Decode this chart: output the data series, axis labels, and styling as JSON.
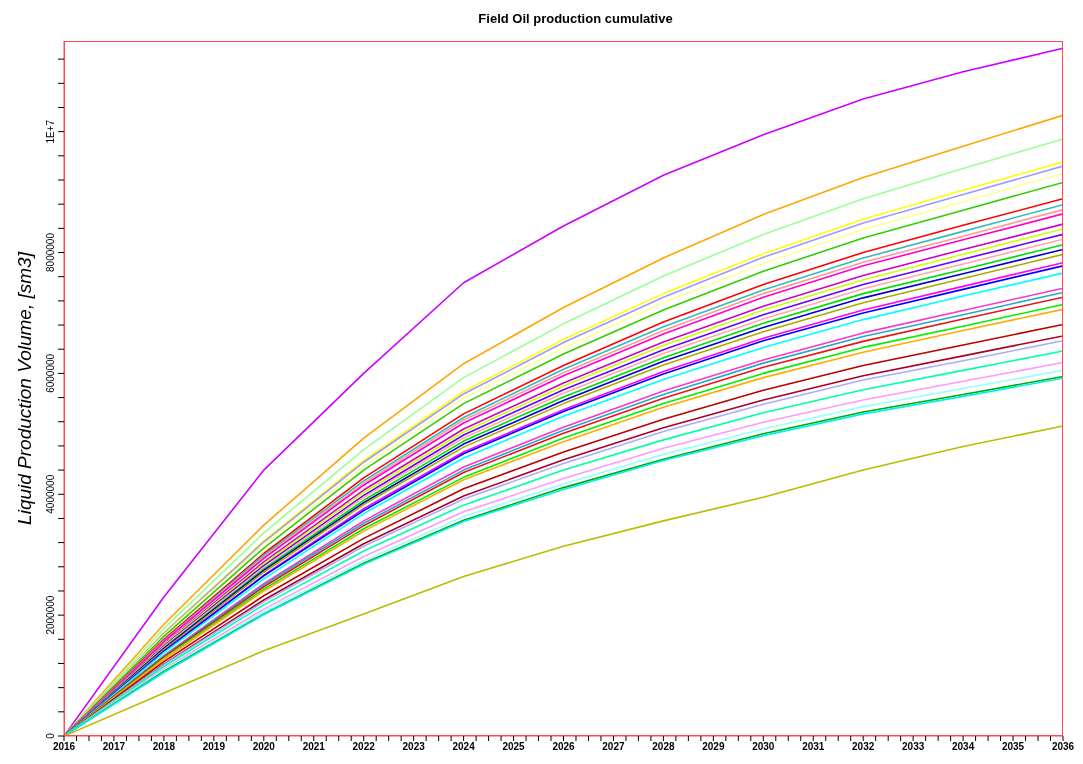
{
  "chart_data": {
    "type": "line",
    "title": "Field Oil production cumulative",
    "ylabel": "Liquid Production Volume, [sm3]",
    "x": [
      2016,
      2018,
      2020,
      2022,
      2024,
      2026,
      2028,
      2030,
      2032,
      2034,
      2036
    ],
    "xlim": [
      2016,
      2036
    ],
    "xticks": [
      2016,
      {
        "value": 2016.25,
        "label": null
      },
      {
        "value": 2016.5,
        "label": null
      },
      {
        "value": 2016.75,
        "label": null
      },
      2017,
      {
        "value": 2017.25,
        "label": null
      },
      {
        "value": 2017.5,
        "label": null
      },
      {
        "value": 2017.75,
        "label": null
      },
      2018,
      {
        "value": 2018.25,
        "label": null
      },
      {
        "value": 2018.5,
        "label": null
      },
      {
        "value": 2018.75,
        "label": null
      },
      2019,
      {
        "value": 2019.25,
        "label": null
      },
      {
        "value": 2019.5,
        "label": null
      },
      {
        "value": 2019.75,
        "label": null
      },
      2020,
      {
        "value": 2020.25,
        "label": null
      },
      {
        "value": 2020.5,
        "label": null
      },
      {
        "value": 2020.75,
        "label": null
      },
      2021,
      {
        "value": 2021.25,
        "label": null
      },
      {
        "value": 2021.5,
        "label": null
      },
      {
        "value": 2021.75,
        "label": null
      },
      2022,
      {
        "value": 2022.25,
        "label": null
      },
      {
        "value": 2022.5,
        "label": null
      },
      {
        "value": 2022.75,
        "label": null
      },
      2023,
      {
        "value": 2023.25,
        "label": null
      },
      {
        "value": 2023.5,
        "label": null
      },
      {
        "value": 2023.75,
        "label": null
      },
      2024,
      {
        "value": 2024.25,
        "label": null
      },
      {
        "value": 2024.5,
        "label": null
      },
      {
        "value": 2024.75,
        "label": null
      },
      2025,
      {
        "value": 2025.25,
        "label": null
      },
      {
        "value": 2025.5,
        "label": null
      },
      {
        "value": 2025.75,
        "label": null
      },
      2026,
      {
        "value": 2026.25,
        "label": null
      },
      {
        "value": 2026.5,
        "label": null
      },
      {
        "value": 2026.75,
        "label": null
      },
      2027,
      {
        "value": 2027.25,
        "label": null
      },
      {
        "value": 2027.5,
        "label": null
      },
      {
        "value": 2027.75,
        "label": null
      },
      2028,
      {
        "value": 2028.25,
        "label": null
      },
      {
        "value": 2028.5,
        "label": null
      },
      {
        "value": 2028.75,
        "label": null
      },
      2029,
      {
        "value": 2029.25,
        "label": null
      },
      {
        "value": 2029.5,
        "label": null
      },
      {
        "value": 2029.75,
        "label": null
      },
      2030,
      {
        "value": 2030.25,
        "label": null
      },
      {
        "value": 2030.5,
        "label": null
      },
      {
        "value": 2030.75,
        "label": null
      },
      2031,
      {
        "value": 2031.25,
        "label": null
      },
      {
        "value": 2031.5,
        "label": null
      },
      {
        "value": 2031.75,
        "label": null
      },
      2032,
      {
        "value": 2032.25,
        "label": null
      },
      {
        "value": 2032.5,
        "label": null
      },
      {
        "value": 2032.75,
        "label": null
      },
      2033,
      {
        "value": 2033.25,
        "label": null
      },
      {
        "value": 2033.5,
        "label": null
      },
      {
        "value": 2033.75,
        "label": null
      },
      2034,
      {
        "value": 2034.25,
        "label": null
      },
      {
        "value": 2034.5,
        "label": null
      },
      {
        "value": 2034.75,
        "label": null
      },
      2035,
      {
        "value": 2035.25,
        "label": null
      },
      {
        "value": 2035.5,
        "label": null
      },
      {
        "value": 2035.75,
        "label": null
      },
      2036
    ],
    "ylim": [
      0,
      11500000
    ],
    "yticks": [
      0,
      {
        "value": 400000,
        "label": null
      },
      {
        "value": 800000,
        "label": null
      },
      {
        "value": 1200000,
        "label": null
      },
      {
        "value": 1600000,
        "label": null
      },
      2000000,
      {
        "value": 2400000,
        "label": null
      },
      {
        "value": 2800000,
        "label": null
      },
      {
        "value": 3200000,
        "label": null
      },
      {
        "value": 3600000,
        "label": null
      },
      4000000,
      {
        "value": 4400000,
        "label": null
      },
      {
        "value": 4800000,
        "label": null
      },
      {
        "value": 5200000,
        "label": null
      },
      {
        "value": 5600000,
        "label": null
      },
      6000000,
      {
        "value": 6400000,
        "label": null
      },
      {
        "value": 6800000,
        "label": null
      },
      {
        "value": 7200000,
        "label": null
      },
      {
        "value": 7600000,
        "label": null
      },
      8000000,
      {
        "value": 8400000,
        "label": null
      },
      {
        "value": 8800000,
        "label": null
      },
      {
        "value": 9200000,
        "label": null
      },
      {
        "value": 9600000,
        "label": null
      },
      {
        "value": 10000000,
        "label": "1E+7"
      },
      {
        "value": 10400000,
        "label": null
      },
      {
        "value": 10800000,
        "label": null
      },
      {
        "value": 11200000,
        "label": null
      }
    ],
    "grid": false,
    "legend": false,
    "marker": "none",
    "line_style": "solid",
    "series": [
      {
        "color": "#cc00ff",
        "values": [
          0,
          2300000.0,
          4400000.0,
          6000000.0,
          7500000.0,
          8440000.0,
          9280000.0,
          9950000.0,
          10540000.0,
          10990000.0,
          11380000.0
        ]
      },
      {
        "color": "#ffa500",
        "values": [
          0,
          1850000.0,
          3490000.0,
          4930000.0,
          6160000.0,
          7090000.0,
          7910000.0,
          8630000.0,
          9240000.0,
          9760000.0,
          10270000.0
        ]
      },
      {
        "color": "#99ff99",
        "values": [
          0,
          1780000.0,
          3360000.0,
          4740000.0,
          5930000.0,
          6820000.0,
          7610000.0,
          8300000.0,
          8890000.0,
          9390000.0,
          9880000.0
        ]
      },
      {
        "color": "#ffff00",
        "values": [
          0,
          1710000.0,
          3230000.0,
          4560000.0,
          5700000.0,
          6560000.0,
          7320000.0,
          7980000.0,
          8550000.0,
          9030000.0,
          9500000.0
        ]
      },
      {
        "color": "#9999ff",
        "values": [
          0,
          1700000.0,
          3210000.0,
          4530000.0,
          5660000.0,
          6510000.0,
          7260000.0,
          7920000.0,
          8490000.0,
          8960000.0,
          9430000.0
        ]
      },
      {
        "color": "#ffff99",
        "values": [
          0,
          1680000.0,
          3170000.0,
          4470000.0,
          5590000.0,
          6420000.0,
          7170000.0,
          7820000.0,
          8380000.0,
          8840000.0,
          9310000.0
        ]
      },
      {
        "color": "#33cc00",
        "values": [
          0,
          1650000.0,
          3110000.0,
          4400000.0,
          5500000.0,
          6320000.0,
          7050000.0,
          7690000.0,
          8240000.0,
          8700000.0,
          9160000.0
        ]
      },
      {
        "color": "#ff0000",
        "values": [
          0,
          1600000.0,
          3020000.0,
          4270000.0,
          5330000.0,
          6130000.0,
          6850000.0,
          7470000.0,
          8000000.0,
          8450000.0,
          8890000.0
        ]
      },
      {
        "color": "#33bbbb",
        "values": [
          0,
          1580000.0,
          2990000.0,
          4220000.0,
          5270000.0,
          6070000.0,
          6770000.0,
          7380000.0,
          7910000.0,
          8350000.0,
          8790000.0
        ]
      },
      {
        "color": "#ff9999",
        "values": [
          0,
          1570000.0,
          2960000.0,
          4180000.0,
          5230000.0,
          6010000.0,
          6710000.0,
          7320000.0,
          7840000.0,
          8270000.0,
          8710000.0
        ]
      },
      {
        "color": "#ff00cc",
        "values": [
          0,
          1560000.0,
          2940000.0,
          4150000.0,
          5180000.0,
          5960000.0,
          6650000.0,
          7260000.0,
          7780000.0,
          8210000.0,
          8640000.0
        ]
      },
      {
        "color": "#cc00cc",
        "values": [
          0,
          1520000.0,
          2880000.0,
          4070000.0,
          5080000.0,
          5840000.0,
          6520000.0,
          7110000.0,
          7620000.0,
          8050000.0,
          8470000.0
        ]
      },
      {
        "color": "#ccff00",
        "values": [
          0,
          1510000.0,
          2850000.0,
          4030000.0,
          5030000.0,
          5790000.0,
          6460000.0,
          7050000.0,
          7550000.0,
          7970000.0,
          8390000.0
        ]
      },
      {
        "color": "#6600ff",
        "values": [
          0,
          1490000.0,
          2820000.0,
          3980000.0,
          4980000.0,
          5730000.0,
          6390000.0,
          6970000.0,
          7470000.0,
          7890000.0,
          8300000.0
        ]
      },
      {
        "color": "#ffaaaa",
        "values": [
          0,
          1480000.0,
          2790000.0,
          3950000.0,
          4930000.0,
          5670000.0,
          6330000.0,
          6900000.0,
          7400000.0,
          7810000.0,
          8220000.0
        ]
      },
      {
        "color": "#00dd00",
        "values": [
          0,
          1460000.0,
          2760000.0,
          3900000.0,
          4880000.0,
          5610000.0,
          6260000.0,
          6830000.0,
          7320000.0,
          7720000.0,
          8130000.0
        ]
      },
      {
        "color": "#0000cc",
        "values": [
          0,
          1450000.0,
          2740000.0,
          3860000.0,
          4830000.0,
          5550000.0,
          6200000.0,
          6760000.0,
          7250000.0,
          7650000.0,
          8050000.0
        ]
      },
      {
        "color": "#aaaa00",
        "values": [
          0,
          1430000.0,
          2710000.0,
          3830000.0,
          4780000.0,
          5500000.0,
          6140000.0,
          6690000.0,
          7170000.0,
          7570000.0,
          7970000.0
        ]
      },
      {
        "color": "#ff00ff",
        "values": [
          0,
          1410000.0,
          2660000.0,
          3760000.0,
          4700000.0,
          5400000.0,
          6030000.0,
          6580000.0,
          7050000.0,
          7440000.0,
          7830000.0
        ]
      },
      {
        "color": "#0000ff",
        "values": [
          0,
          1400000.0,
          2650000.0,
          3730000.0,
          4670000.0,
          5370000.0,
          5990000.0,
          6540000.0,
          7000000.0,
          7390000.0,
          7780000.0
        ]
      },
      {
        "color": "#00ffff",
        "values": [
          0,
          1380000.0,
          2600000.0,
          3680000.0,
          4600000.0,
          5290000.0,
          5900000.0,
          6430000.0,
          6890000.0,
          7280000.0,
          7660000.0
        ]
      },
      {
        "color": "#ff33cc",
        "values": [
          0,
          1330000.0,
          2520000.0,
          3560000.0,
          4450000.0,
          5110000.0,
          5710000.0,
          6220000.0,
          6670000.0,
          7040000.0,
          7410000.0
        ]
      },
      {
        "color": "#22aacc",
        "values": [
          0,
          1320000.0,
          2500000.0,
          3520000.0,
          4400000.0,
          5060000.0,
          5650000.0,
          6170000.0,
          6610000.0,
          6970000.0,
          7340000.0
        ]
      },
      {
        "color": "#ee1111",
        "values": [
          0,
          1310000.0,
          2470000.0,
          3480000.0,
          4360000.0,
          5010000.0,
          5590000.0,
          6100000.0,
          6530000.0,
          6900000.0,
          7260000.0
        ]
      },
      {
        "color": "#00ee00",
        "values": [
          0,
          1290000.0,
          2430000.0,
          3430000.0,
          4280000.0,
          4930000.0,
          5500000.0,
          6000000.0,
          6430000.0,
          6780000.0,
          7140000.0
        ]
      },
      {
        "color": "#ffaa00",
        "values": [
          0,
          1270000.0,
          2400000.0,
          3390000.0,
          4240000.0,
          4870000.0,
          5440000.0,
          5930000.0,
          6350000.0,
          6710000.0,
          7060000.0
        ]
      },
      {
        "color": "#bb0000",
        "values": [
          0,
          1230000.0,
          2320000.0,
          3270000.0,
          4090000.0,
          4700000.0,
          5240000.0,
          5720000.0,
          6130000.0,
          6470000.0,
          6810000.0
        ]
      },
      {
        "color": "#aa0022",
        "values": [
          0,
          1190000.0,
          2250000.0,
          3180000.0,
          3970000.0,
          4570000.0,
          5100000.0,
          5560000.0,
          5960000.0,
          6290000.0,
          6620000.0
        ]
      },
      {
        "color": "#aaaaff",
        "values": [
          0,
          1180000.0,
          2220000.0,
          3140000.0,
          3920000.0,
          4510000.0,
          5040000.0,
          5490000.0,
          5890000.0,
          6210000.0,
          6540000.0
        ]
      },
      {
        "color": "#00ffaa",
        "values": [
          0,
          1150000.0,
          2170000.0,
          3060000.0,
          3820000.0,
          4400000.0,
          4900000.0,
          5350000.0,
          5730000.0,
          6050000.0,
          6370000.0
        ]
      },
      {
        "color": "#ff99ff",
        "values": [
          0,
          1110000.0,
          2100000.0,
          2970000.0,
          3710000.0,
          4260000.0,
          4760000.0,
          5190000.0,
          5560000.0,
          5870000.0,
          6180000.0
        ]
      },
      {
        "color": "#99ffff",
        "values": [
          0,
          1090000.0,
          2060000.0,
          2900000.0,
          3630000.0,
          4170000.0,
          4660000.0,
          5080000.0,
          5450000.0,
          5750000.0,
          6050000.0
        ]
      },
      {
        "color": "#00aa00",
        "values": [
          0,
          1070000.0,
          2020000.0,
          2860000.0,
          3570000.0,
          4110000.0,
          4580000.0,
          5000000.0,
          5360000.0,
          5650000.0,
          5950000.0
        ]
      },
      {
        "color": "#00eeee",
        "values": [
          0,
          1050000.0,
          2010000.0,
          2840000.0,
          3550000.0,
          4080000.0,
          4560000.0,
          4970000.0,
          5330000.0,
          5620000.0,
          5920000.0
        ]
      },
      {
        "color": "#bbbb00",
        "values": [
          0,
          710000.0,
          1410000.0,
          2020000.0,
          2640000.0,
          3140000.0,
          3560000.0,
          3950000.0,
          4400000.0,
          4790000.0,
          5130000.0
        ]
      }
    ]
  }
}
